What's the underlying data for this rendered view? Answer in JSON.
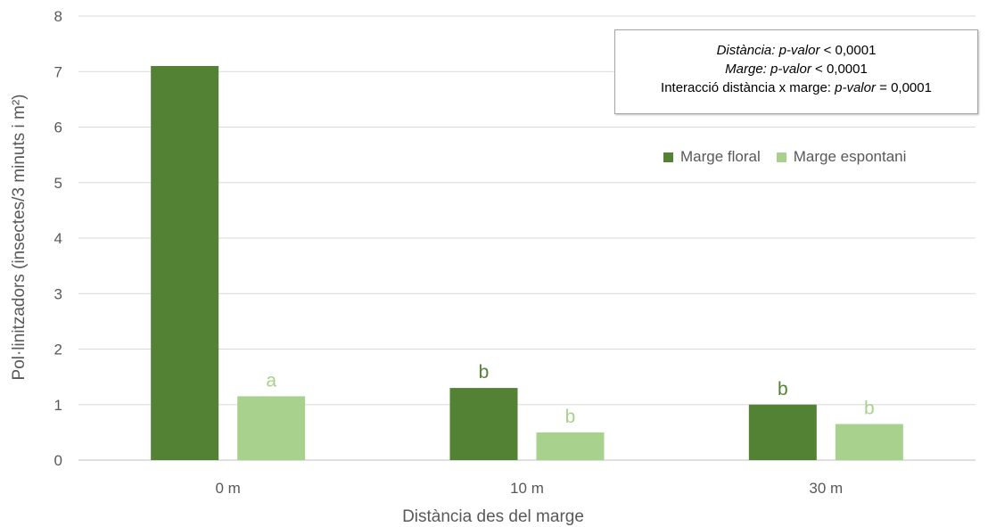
{
  "chart_data": {
    "type": "bar",
    "title": "",
    "xlabel": "Distància des del marge",
    "ylabel": "Pol·linitzadors (insectes/3 minuts i m²)",
    "categories": [
      "0 m",
      "10 m",
      "30 m"
    ],
    "ylim": [
      0,
      8
    ],
    "yticks": [
      0,
      1,
      2,
      3,
      4,
      5,
      6,
      7,
      8
    ],
    "grid": true,
    "legend_position": "top-right",
    "series": [
      {
        "name": "Marge floral",
        "color": "#548235",
        "values": [
          7.1,
          1.3,
          1.0
        ],
        "labels": [
          "",
          "b",
          "b"
        ]
      },
      {
        "name": "Marge espontani",
        "color": "#a9d18e",
        "values": [
          1.15,
          0.5,
          0.65
        ],
        "labels": [
          "a",
          "b",
          "b"
        ]
      }
    ],
    "annotation": {
      "line1": {
        "term": "Distància:",
        "metric": "p-valor",
        "rest": " < 0,0001"
      },
      "line2": {
        "term": "Marge:",
        "metric": "p-valor",
        "rest": " < 0,0001"
      },
      "line3": {
        "term": "Interacció distància x marge:",
        "metric": "p-valor",
        "rest": " = 0,0001"
      }
    }
  }
}
